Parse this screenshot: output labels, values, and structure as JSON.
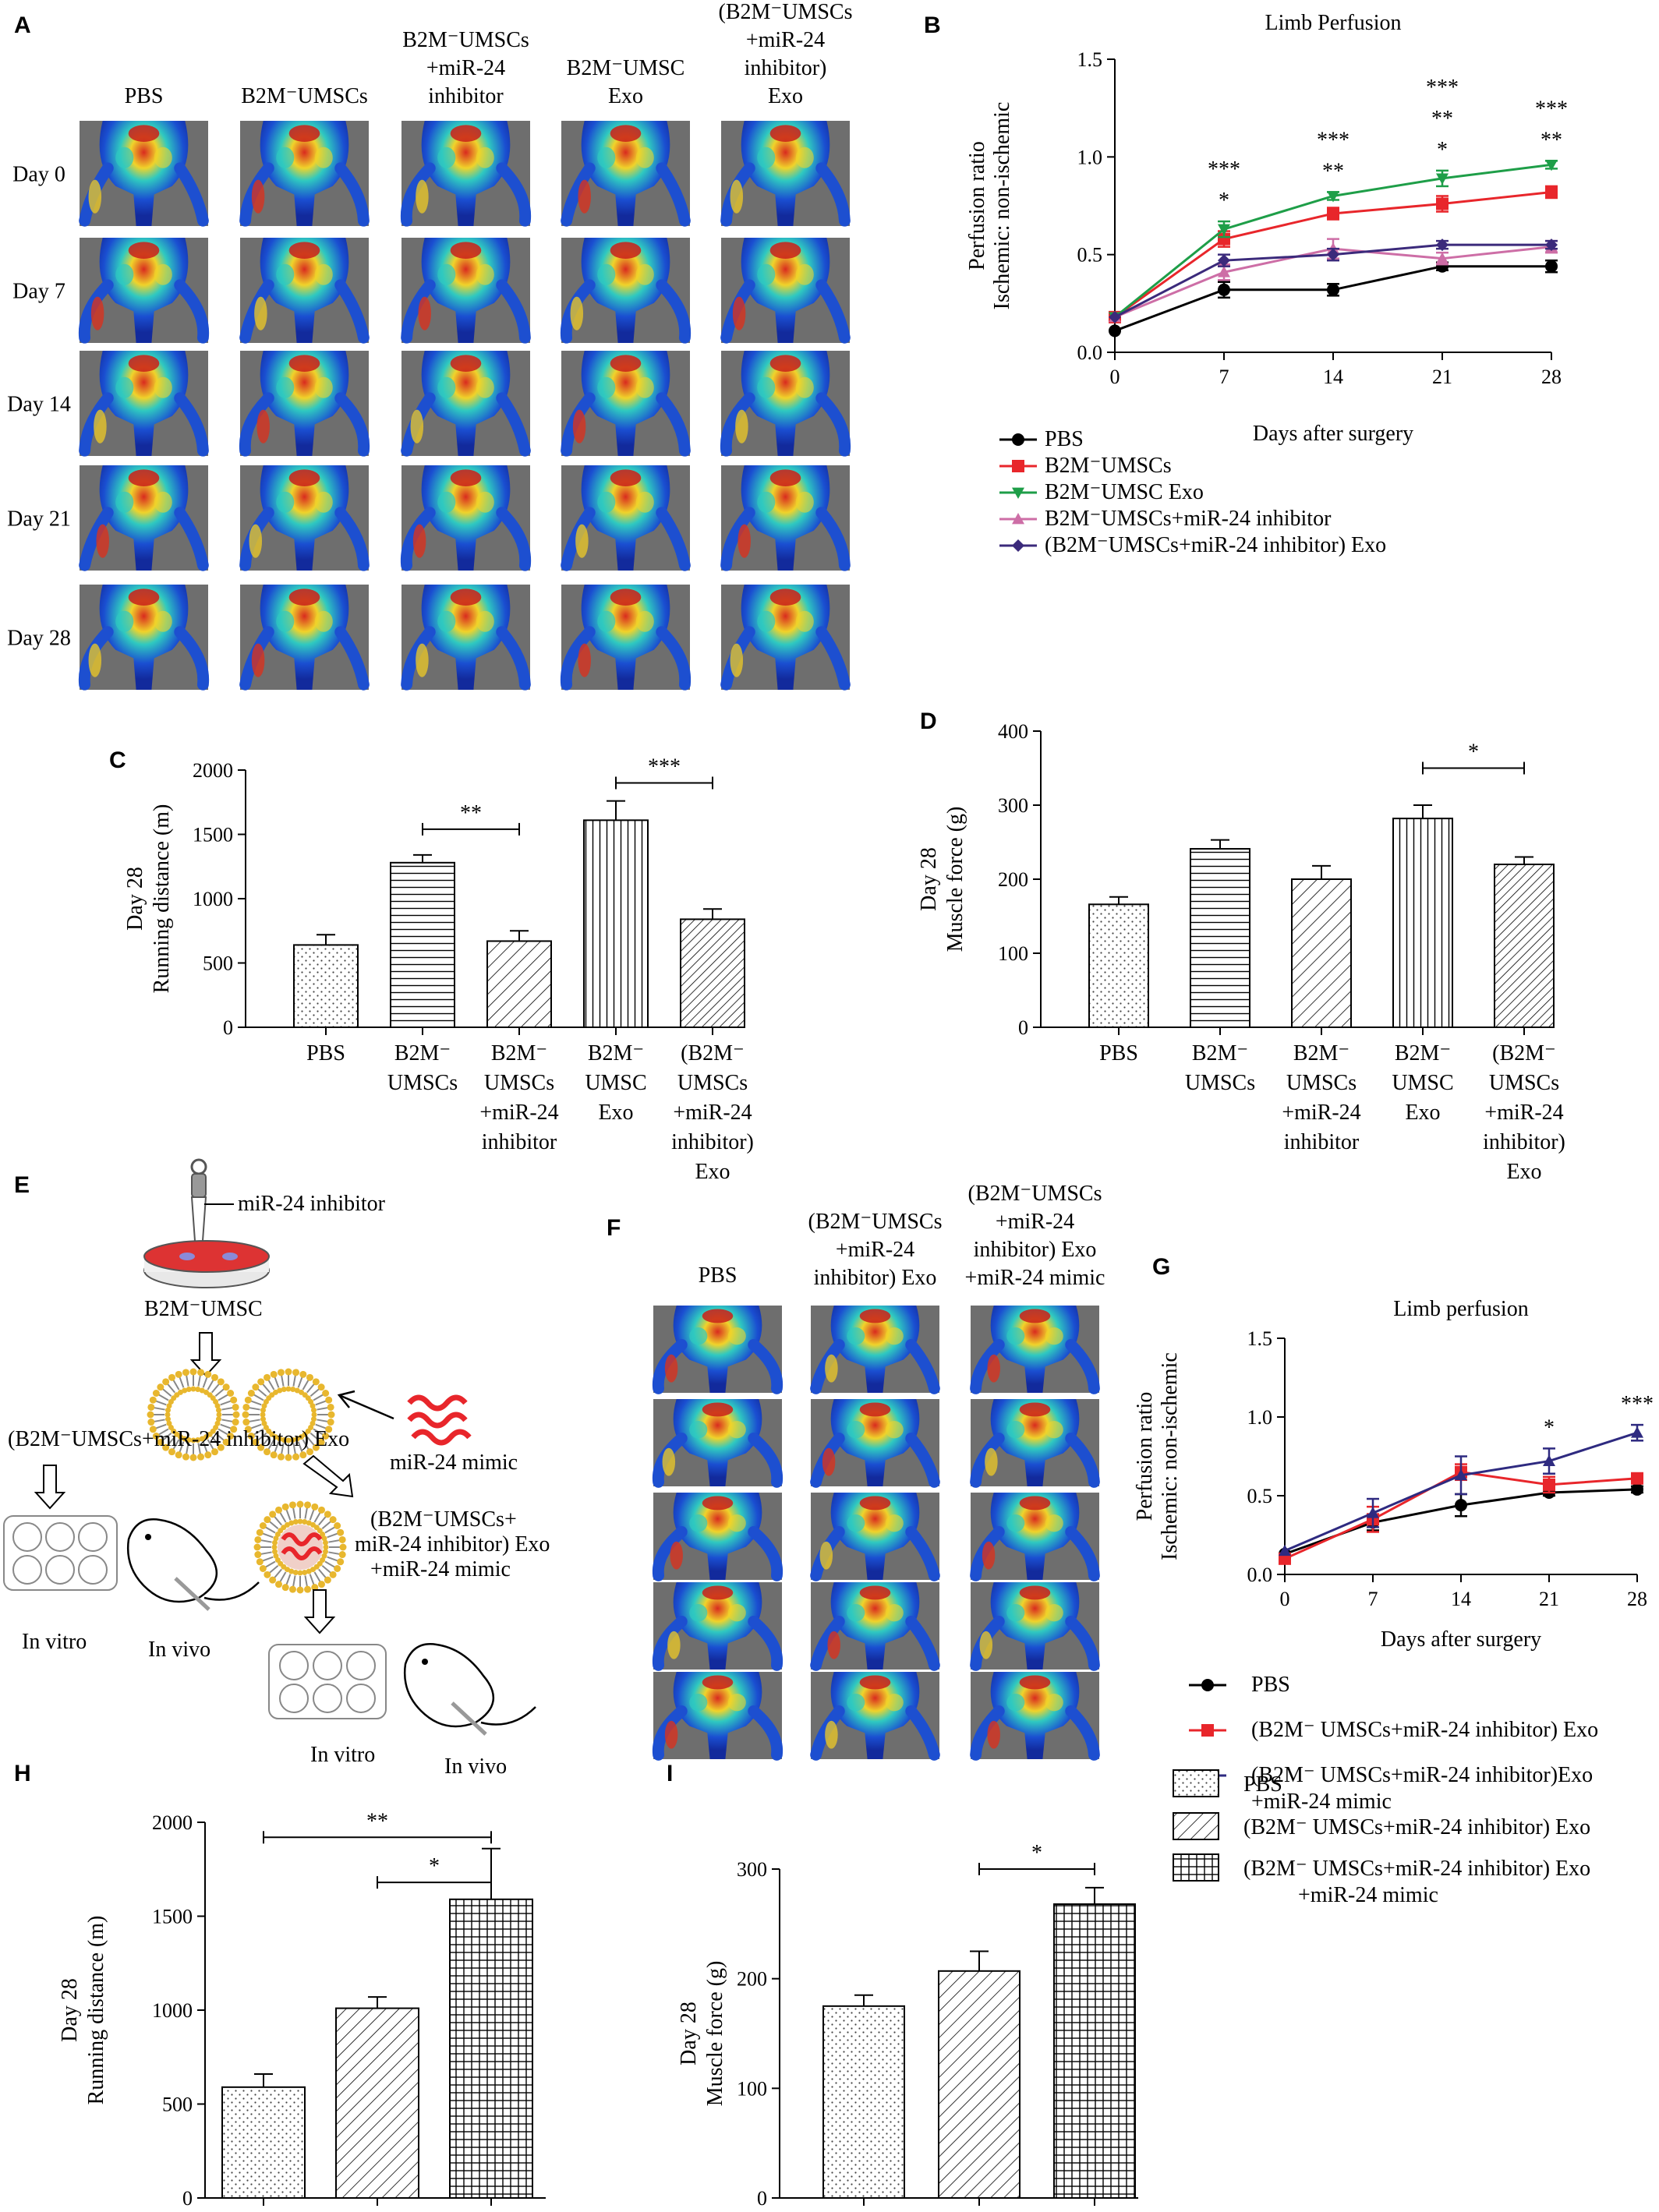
{
  "panels": {
    "a": {
      "letter": "A"
    },
    "b": {
      "letter": "B"
    },
    "c": {
      "letter": "C"
    },
    "d": {
      "letter": "D"
    },
    "e": {
      "letter": "E"
    },
    "f": {
      "letter": "F"
    },
    "g": {
      "letter": "G"
    },
    "h": {
      "letter": "H"
    },
    "i": {
      "letter": "I"
    }
  },
  "panel_a": {
    "columns": [
      [
        "PBS"
      ],
      [
        "B2M⁻UMSCs"
      ],
      [
        "B2M⁻UMSCs",
        "+miR-24",
        "inhibitor"
      ],
      [
        "B2M⁻UMSC",
        "Exo"
      ],
      [
        "(B2M⁻UMSCs",
        "+miR-24",
        "inhibitor)",
        "Exo"
      ]
    ],
    "rows": [
      "Day 0",
      "Day 7",
      "Day 14",
      "Day 21",
      "Day 28"
    ]
  },
  "panel_f": {
    "columns": [
      [
        "PBS"
      ],
      [
        "(B2M⁻UMSCs",
        "+miR-24",
        "inhibitor)  Exo"
      ],
      [
        "(B2M⁻UMSCs",
        "+miR-24",
        "inhibitor)  Exo",
        "+miR-24 mimic"
      ]
    ]
  },
  "panel_e": {
    "inhibitor_label": "miR-24  inhibitor",
    "cell_label": "B2M⁻UMSC",
    "exo_label": "(B2M⁻UMSCs+miR-24  inhibitor)  Exo",
    "mimic_label": "miR-24  mimic",
    "combo_label": [
      "(B2M⁻UMSCs+",
      "miR-24 inhibitor)  Exo",
      "+miR-24 mimic"
    ],
    "invitro1": "In vitro",
    "invivo1": "In vivo",
    "invitro2": "In vitro",
    "invivo2": "In vivo"
  },
  "legend_hi": {
    "items": [
      "PBS",
      "(B2M⁻ UMSCs+miR-24  inhibitor)  Exo",
      "(B2M⁻ UMSCs+miR-24  inhibitor)  Exo"
    ],
    "item3_line2": "+miR-24 mimic"
  },
  "chart_data": [
    {
      "id": "B",
      "type": "line",
      "title": "Limb Perfusion",
      "xlabel": "Days after surgery",
      "ylabel": [
        "Perfusion ratio",
        "Ischemic: non-ischemic"
      ],
      "x": [
        0,
        7,
        14,
        21,
        28
      ],
      "xlim": [
        0,
        28
      ],
      "ylim": [
        0,
        1.5
      ],
      "yticks": [
        0.0,
        0.5,
        1.0,
        1.5
      ],
      "ytick_labels": [
        "0.0",
        "0.5",
        "1.0",
        "1.5"
      ],
      "series": [
        {
          "name": "PBS",
          "values": [
            0.11,
            0.32,
            0.32,
            0.44,
            0.44
          ],
          "err": [
            0,
            0.04,
            0.03,
            0.02,
            0.03
          ],
          "color": "#000000",
          "marker": "circle"
        },
        {
          "name": "B2M⁻UMSCs",
          "values": [
            0.18,
            0.58,
            0.71,
            0.76,
            0.82
          ],
          "err": [
            0,
            0.04,
            0.03,
            0.04,
            0.03
          ],
          "color": "#e8262b",
          "marker": "square"
        },
        {
          "name": "B2M⁻UMSC Exo",
          "values": [
            0.18,
            0.63,
            0.8,
            0.89,
            0.96
          ],
          "err": [
            0,
            0.04,
            0.02,
            0.04,
            0.02
          ],
          "color": "#1e9e48",
          "marker": "triangle-down"
        },
        {
          "name": "B2M⁻UMSCs+miR-24  inhibitor",
          "values": [
            0.18,
            0.41,
            0.53,
            0.48,
            0.54
          ],
          "err": [
            0,
            0.04,
            0.05,
            0.03,
            0.03
          ],
          "color": "#cd6ea6",
          "marker": "triangle-up"
        },
        {
          "name": "(B2M⁻UMSCs+miR-24  inhibitor)  Exo",
          "values": [
            0.18,
            0.47,
            0.5,
            0.55,
            0.55
          ],
          "err": [
            0,
            0.03,
            0.03,
            0.02,
            0.02
          ],
          "color": "#3b2a7b",
          "marker": "diamond"
        }
      ],
      "annotations": [
        {
          "x": 7,
          "lines": [
            "***",
            "*"
          ]
        },
        {
          "x": 14,
          "lines": [
            "***",
            "**"
          ]
        },
        {
          "x": 21,
          "lines": [
            "***",
            "**",
            "*"
          ]
        },
        {
          "x": 28,
          "lines": [
            "***",
            "**"
          ]
        }
      ]
    },
    {
      "id": "C",
      "type": "bar",
      "ylabel": [
        "Day 28",
        "Running distance (m)"
      ],
      "categories": [
        [
          "PBS"
        ],
        [
          "B2M⁻",
          "UMSCs"
        ],
        [
          "B2M⁻",
          "UMSCs",
          "+miR-24",
          "inhibitor"
        ],
        [
          "B2M⁻",
          "UMSC",
          "Exo"
        ],
        [
          "(B2M⁻",
          "UMSCs",
          "+miR-24",
          "inhibitor)",
          "Exo"
        ]
      ],
      "values": [
        640,
        1280,
        670,
        1610,
        840
      ],
      "err": [
        80,
        60,
        80,
        150,
        80
      ],
      "patterns": [
        "dots",
        "hlines",
        "diag",
        "vlines",
        "diag-dense"
      ],
      "ylim": [
        0,
        2000
      ],
      "yticks": [
        0,
        500,
        1000,
        1500,
        2000
      ],
      "sig": [
        {
          "from": 1,
          "to": 2,
          "label": "**",
          "y": 1540
        },
        {
          "from": 3,
          "to": 4,
          "label": "***",
          "y": 1900
        }
      ]
    },
    {
      "id": "D",
      "type": "bar",
      "ylabel": [
        "Day 28",
        "Muscle force (g)"
      ],
      "categories": [
        [
          "PBS"
        ],
        [
          "B2M⁻",
          "UMSCs"
        ],
        [
          "B2M⁻",
          "UMSCs",
          "+miR-24",
          "inhibitor"
        ],
        [
          "B2M⁻",
          "UMSC",
          "Exo"
        ],
        [
          "(B2M⁻",
          "UMSCs",
          "+miR-24",
          "inhibitor)",
          "Exo"
        ]
      ],
      "values": [
        166,
        241,
        200,
        282,
        220
      ],
      "err": [
        10,
        12,
        18,
        18,
        10
      ],
      "patterns": [
        "dots",
        "hlines",
        "diag",
        "vlines",
        "diag-dense"
      ],
      "ylim": [
        0,
        400
      ],
      "yticks": [
        0,
        100,
        200,
        300,
        400
      ],
      "sig": [
        {
          "from": 3,
          "to": 4,
          "label": "*",
          "y": 350
        }
      ]
    },
    {
      "id": "G",
      "type": "line",
      "title": "Limb perfusion",
      "xlabel": "Days after surgery",
      "ylabel": [
        "Perfusion ratio",
        "Ischemic: non-ischemic"
      ],
      "x": [
        0,
        7,
        14,
        21,
        28
      ],
      "xlim": [
        0,
        28
      ],
      "ylim": [
        0,
        1.5
      ],
      "yticks": [
        0.0,
        0.5,
        1.0,
        1.5
      ],
      "ytick_labels": [
        "0.0",
        "0.5",
        "1.0",
        "1.5"
      ],
      "series": [
        {
          "name": "PBS",
          "values": [
            0.13,
            0.33,
            0.44,
            0.52,
            0.54
          ],
          "err": [
            0,
            0.05,
            0.07,
            0.02,
            0.02
          ],
          "color": "#000000",
          "marker": "circle"
        },
        {
          "name": "(B2M⁻ UMSCs+miR-24  inhibitor)  Exo",
          "values": [
            0.1,
            0.35,
            0.65,
            0.57,
            0.61
          ],
          "err": [
            0,
            0.08,
            0.05,
            0.05,
            0.02
          ],
          "color": "#e8262b",
          "marker": "square"
        },
        {
          "name": "(B2M⁻ UMSCs+miR-24  inhibitor)Exo +miR-24 mimic",
          "values": [
            0.15,
            0.39,
            0.63,
            0.72,
            0.9
          ],
          "err": [
            0,
            0.09,
            0.12,
            0.08,
            0.05
          ],
          "color": "#2e2a80",
          "marker": "triangle-up"
        }
      ],
      "legend_items": [
        [
          "PBS"
        ],
        [
          "(B2M⁻ UMSCs+miR-24  inhibitor)  Exo"
        ],
        [
          "(B2M⁻ UMSCs+miR-24  inhibitor)Exo",
          "+miR-24 mimic"
        ]
      ],
      "annotations": [
        {
          "x": 21,
          "lines": [
            "*"
          ]
        },
        {
          "x": 28,
          "lines": [
            "***"
          ]
        }
      ]
    },
    {
      "id": "H",
      "type": "bar",
      "ylabel": [
        "Day 28",
        "Running distance (m)"
      ],
      "categories": [
        "",
        "",
        ""
      ],
      "values": [
        590,
        1010,
        1590
      ],
      "err": [
        70,
        60,
        270
      ],
      "patterns": [
        "dots",
        "diag",
        "grid"
      ],
      "ylim": [
        0,
        2000
      ],
      "yticks": [
        0,
        500,
        1000,
        1500,
        2000
      ],
      "sig": [
        {
          "from": 0,
          "to": 2,
          "label": "**",
          "y": 1920
        },
        {
          "from": 1,
          "to": 2,
          "label": "*",
          "y": 1680
        }
      ]
    },
    {
      "id": "I",
      "type": "bar",
      "ylabel": [
        "Day 28",
        "Muscle force (g)"
      ],
      "categories": [
        "",
        "",
        ""
      ],
      "values": [
        175,
        207,
        268
      ],
      "err": [
        10,
        18,
        15
      ],
      "patterns": [
        "dots",
        "diag",
        "grid"
      ],
      "ylim": [
        0,
        300
      ],
      "yticks": [
        0,
        100,
        200,
        300
      ],
      "sig": [
        {
          "from": 1,
          "to": 2,
          "label": "*",
          "y": 300
        }
      ]
    }
  ]
}
